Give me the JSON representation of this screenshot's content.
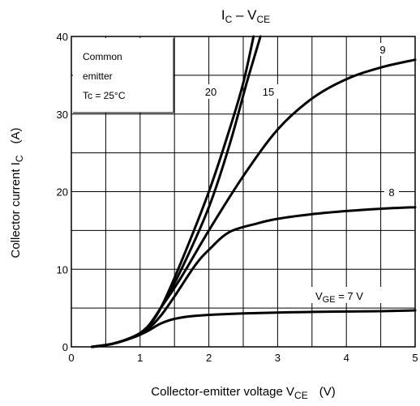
{
  "chart_data": {
    "type": "line",
    "title": "I",
    "title_sub": "C",
    "title_dash": " – V",
    "title_sub2": "CE",
    "xlabel": "Collector-emitter voltage   V",
    "xlabel_sub": "CE",
    "xlabel_unit": "(V)",
    "ylabel": "Collector current   I",
    "ylabel_sub": "C",
    "ylabel_unit": "(A)",
    "xlim": [
      0,
      5
    ],
    "ylim": [
      0,
      40
    ],
    "x_ticks": [
      "0",
      "1",
      "2",
      "3",
      "4",
      "5"
    ],
    "y_ticks": [
      "0",
      "10",
      "20",
      "30",
      "40"
    ],
    "grid": true,
    "annotation": {
      "line1": "Common",
      "line2": "emitter",
      "line3": "Tc = 25°C"
    },
    "series": [
      {
        "name": "VGE = 7 V",
        "points": [
          [
            0.3,
            0
          ],
          [
            0.6,
            0.4
          ],
          [
            0.9,
            1.2
          ],
          [
            1.1,
            2.0
          ],
          [
            1.3,
            3.0
          ],
          [
            1.5,
            3.6
          ],
          [
            1.8,
            4.0
          ],
          [
            2.5,
            4.3
          ],
          [
            3.5,
            4.5
          ],
          [
            4.5,
            4.6
          ],
          [
            5,
            4.7
          ]
        ]
      },
      {
        "name": "8",
        "points": [
          [
            0.3,
            0
          ],
          [
            0.6,
            0.4
          ],
          [
            0.9,
            1.3
          ],
          [
            1.1,
            2.2
          ],
          [
            1.3,
            4.0
          ],
          [
            1.5,
            6.5
          ],
          [
            1.8,
            10.5
          ],
          [
            2.0,
            12.5
          ],
          [
            2.3,
            14.8
          ],
          [
            2.7,
            15.9
          ],
          [
            3.0,
            16.5
          ],
          [
            3.5,
            17.1
          ],
          [
            4.0,
            17.5
          ],
          [
            4.5,
            17.8
          ],
          [
            5,
            18.0
          ]
        ]
      },
      {
        "name": "9",
        "points": [
          [
            0.3,
            0
          ],
          [
            0.6,
            0.4
          ],
          [
            0.9,
            1.3
          ],
          [
            1.1,
            2.5
          ],
          [
            1.3,
            5.0
          ],
          [
            1.6,
            9.0
          ],
          [
            2.0,
            15.0
          ],
          [
            2.5,
            22.0
          ],
          [
            3.0,
            28.0
          ],
          [
            3.5,
            32.0
          ],
          [
            4.0,
            34.5
          ],
          [
            4.5,
            36.0
          ],
          [
            5,
            37.0
          ]
        ]
      },
      {
        "name": "15",
        "points": [
          [
            0.3,
            0
          ],
          [
            0.6,
            0.4
          ],
          [
            0.9,
            1.3
          ],
          [
            1.1,
            2.5
          ],
          [
            1.3,
            5.0
          ],
          [
            1.6,
            10.0
          ],
          [
            2.0,
            18.0
          ],
          [
            2.3,
            26.0
          ],
          [
            2.55,
            34.0
          ],
          [
            2.75,
            40.0
          ]
        ]
      },
      {
        "name": "20",
        "points": [
          [
            0.3,
            0
          ],
          [
            0.6,
            0.4
          ],
          [
            0.9,
            1.3
          ],
          [
            1.1,
            2.5
          ],
          [
            1.3,
            5.0
          ],
          [
            1.6,
            11.0
          ],
          [
            2.0,
            20.0
          ],
          [
            2.3,
            28.0
          ],
          [
            2.5,
            34.0
          ],
          [
            2.65,
            40.0
          ]
        ]
      }
    ],
    "label_values": {
      "v7_prefix": "V",
      "v7_sub": "GE",
      "v7_suffix": " = 7 V",
      "l8": "8",
      "l9": "9",
      "l15": "15",
      "l20": "20"
    }
  }
}
